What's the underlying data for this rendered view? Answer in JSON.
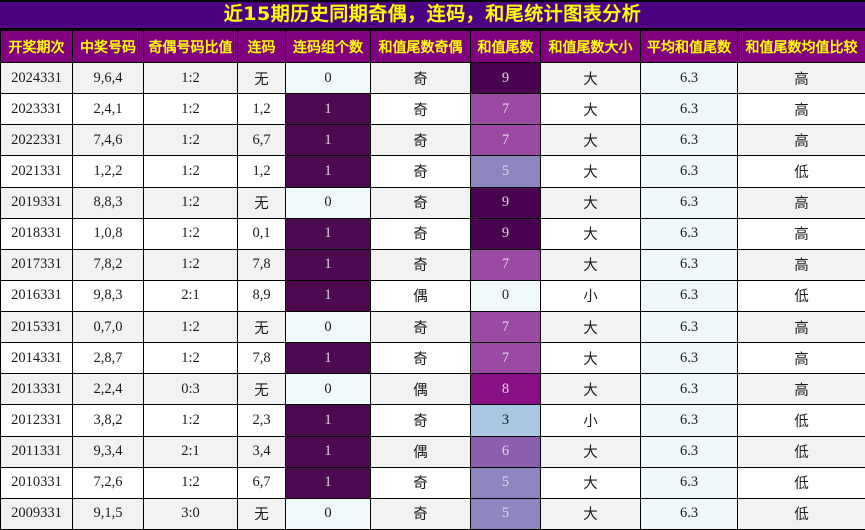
{
  "title": "近15期历史同期奇偶，连码，和尾统计图表分析",
  "chart_data": {
    "type": "table",
    "title": "近15期历史同期奇偶，连码，和尾统计图表分析",
    "columns": [
      "开奖期次",
      "中奖号码",
      "奇偶号码比值",
      "连码",
      "连码组个数",
      "和值尾数奇偶",
      "和值尾数",
      "和值尾数大小",
      "平均和值尾数",
      "和值尾数均值比较"
    ],
    "rows": [
      [
        "2024331",
        "9,6,4",
        "1:2",
        "无",
        "0",
        "奇",
        "9",
        "大",
        "6.3",
        "高"
      ],
      [
        "2023331",
        "2,4,1",
        "1:2",
        "1,2",
        "1",
        "奇",
        "7",
        "大",
        "6.3",
        "高"
      ],
      [
        "2022331",
        "7,4,6",
        "1:2",
        "6,7",
        "1",
        "奇",
        "7",
        "大",
        "6.3",
        "高"
      ],
      [
        "2021331",
        "1,2,2",
        "1:2",
        "1,2",
        "1",
        "奇",
        "5",
        "大",
        "6.3",
        "低"
      ],
      [
        "2019331",
        "8,8,3",
        "1:2",
        "无",
        "0",
        "奇",
        "9",
        "大",
        "6.3",
        "高"
      ],
      [
        "2018331",
        "1,0,8",
        "1:2",
        "0,1",
        "1",
        "奇",
        "9",
        "大",
        "6.3",
        "高"
      ],
      [
        "2017331",
        "7,8,2",
        "1:2",
        "7,8",
        "1",
        "奇",
        "7",
        "大",
        "6.3",
        "高"
      ],
      [
        "2016331",
        "9,8,3",
        "2:1",
        "8,9",
        "1",
        "偶",
        "0",
        "小",
        "6.3",
        "低"
      ],
      [
        "2015331",
        "0,7,0",
        "1:2",
        "无",
        "0",
        "奇",
        "7",
        "大",
        "6.3",
        "高"
      ],
      [
        "2014331",
        "2,8,7",
        "1:2",
        "7,8",
        "1",
        "奇",
        "7",
        "大",
        "6.3",
        "高"
      ],
      [
        "2013331",
        "2,2,4",
        "0:3",
        "无",
        "0",
        "偶",
        "8",
        "大",
        "6.3",
        "高"
      ],
      [
        "2012331",
        "3,8,2",
        "1:2",
        "2,3",
        "1",
        "奇",
        "3",
        "小",
        "6.3",
        "低"
      ],
      [
        "2011331",
        "9,3,4",
        "2:1",
        "3,4",
        "1",
        "偶",
        "6",
        "大",
        "6.3",
        "低"
      ],
      [
        "2010331",
        "7,2,6",
        "1:2",
        "6,7",
        "1",
        "奇",
        "5",
        "大",
        "6.3",
        "低"
      ],
      [
        "2009331",
        "9,1,5",
        "3:0",
        "无",
        "0",
        "奇",
        "5",
        "大",
        "6.3",
        "低"
      ]
    ]
  },
  "column_keys": [
    "period",
    "winning-numbers",
    "odd-even-ratio",
    "consecutive-codes",
    "consecutive-group-count",
    "sum-tail-parity",
    "sum-tail",
    "sum-tail-size",
    "avg-sum-tail",
    "vs-mean"
  ],
  "styles": {
    "title_bg": "#4b0082",
    "title_color": "#ffff00",
    "header_bg": "#800080",
    "header_text": "#ffff00",
    "row_bg": "#ffffff",
    "row_alt_bg": "#f2f2f2",
    "avg_col_bg": "#eef8fa",
    "dark_cell_text": "#dcdcdc",
    "count_cell_colors": {
      "0": "#f0f9fa",
      "1": "#4c0a51"
    },
    "count_cell_dark_text_values": [
      "0"
    ],
    "tail_cell_colors": {
      "0": "#f0f9fa",
      "3": "#a9c7e2",
      "5": "#8d85be",
      "6": "#8b5fae",
      "7": "#9b4aa3",
      "8": "#8a1086",
      "9": "#4a0350"
    },
    "tail_cell_dark_text_values": [
      "0",
      "3"
    ]
  }
}
